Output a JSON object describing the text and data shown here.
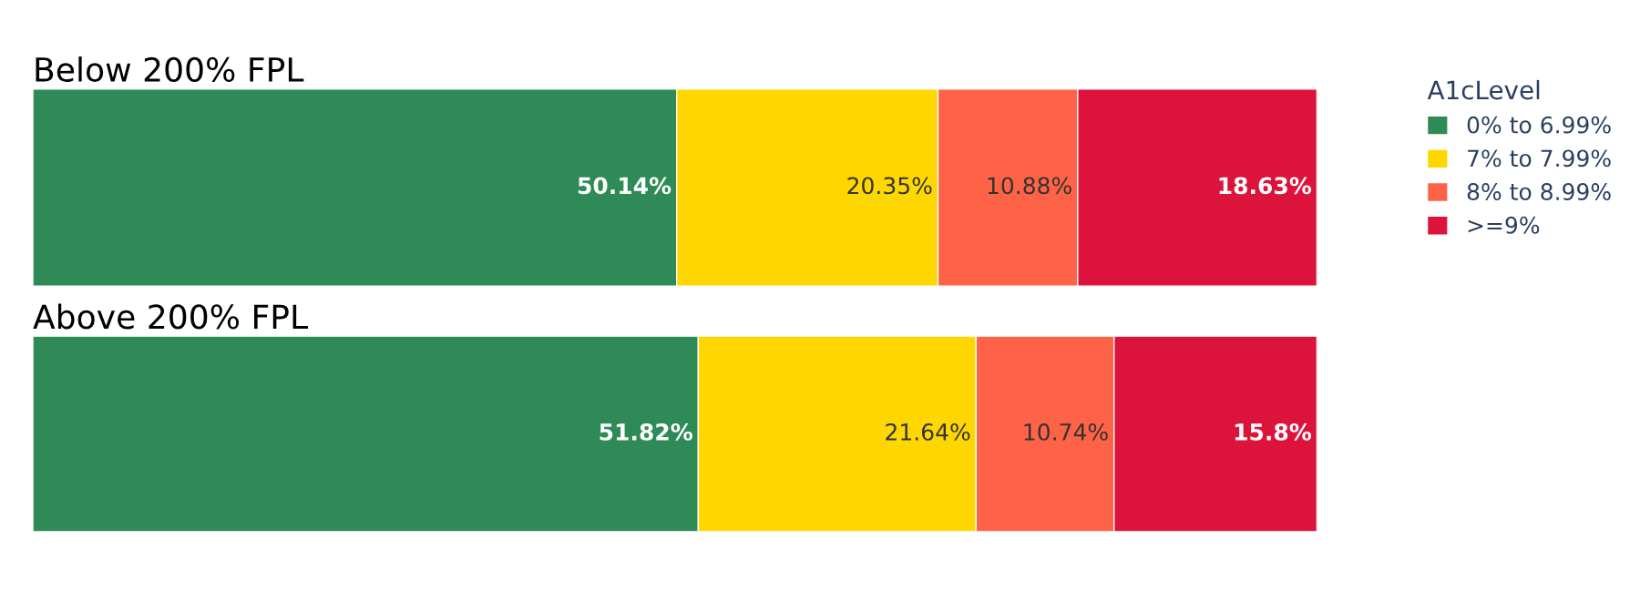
{
  "chart_data": [
    {
      "type": "bar",
      "orientation": "horizontal",
      "stacked": true,
      "title": "Below 200% FPL",
      "categories": [
        null
      ],
      "legend": "right",
      "legend_title": "A1cLevel",
      "series": [
        {
          "name": "0% to 6.99%",
          "color": "#2e8b57",
          "values": [
            50.14
          ],
          "value_labels": [
            "50.14%"
          ]
        },
        {
          "name": "7% to 7.99%",
          "color": "#ffd700",
          "values": [
            20.35
          ],
          "value_labels": [
            "20.35%"
          ]
        },
        {
          "name": "8% to 8.99%",
          "color": "#ff6347",
          "values": [
            10.88
          ],
          "value_labels": [
            "10.88%"
          ]
        },
        {
          "name": ">=9%",
          "color": "#dc143c",
          "values": [
            18.63
          ],
          "value_labels": [
            "18.63%"
          ]
        }
      ]
    },
    {
      "type": "bar",
      "orientation": "horizontal",
      "stacked": true,
      "title": "Above 200% FPL",
      "categories": [
        null
      ],
      "series": [
        {
          "color": "#2e8b57",
          "values": [
            51.82
          ],
          "value_labels": [
            "51.82%"
          ]
        },
        {
          "color": "#ffd700",
          "values": [
            21.64
          ],
          "value_labels": [
            "21.64%"
          ]
        },
        {
          "color": "#ff6347",
          "values": [
            10.74
          ],
          "value_labels": [
            "10.74%"
          ]
        },
        {
          "color": "#dc143c",
          "values": [
            15.8
          ],
          "value_labels": [
            "15.8%"
          ]
        }
      ]
    }
  ]
}
